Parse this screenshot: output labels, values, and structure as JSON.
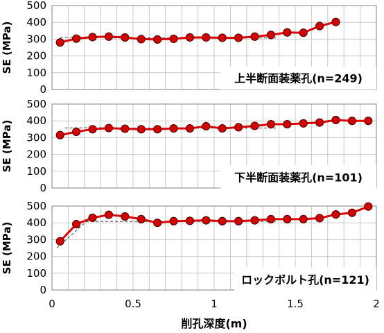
{
  "chart_data": {
    "type": "line",
    "xlabel": "削孔深度(m)",
    "xlim": [
      0,
      2
    ],
    "x_ticks": [
      "0",
      "0.5",
      "1",
      "1.5",
      "2"
    ],
    "grid": true,
    "colors": {
      "line": "#e00000",
      "marker_fill": "#d40000",
      "marker_edge": "#5a0000",
      "trend": "#444444"
    },
    "panels": [
      {
        "title": "上半断面装薬孔(n=249)",
        "ylabel": "SE (MPa)",
        "ylim": [
          0,
          500
        ],
        "y_ticks": [
          "0",
          "100",
          "200",
          "300",
          "400",
          "500"
        ],
        "x": [
          0.05,
          0.15,
          0.25,
          0.35,
          0.45,
          0.55,
          0.65,
          0.75,
          0.85,
          0.95,
          1.05,
          1.15,
          1.25,
          1.35,
          1.45,
          1.55,
          1.65,
          1.75
        ],
        "values": [
          280,
          303,
          312,
          315,
          310,
          300,
          298,
          302,
          310,
          310,
          308,
          308,
          315,
          325,
          340,
          338,
          378,
          402
        ],
        "trend_segments": [
          {
            "x": [
              0.05,
              0.38
            ],
            "y": [
              308,
              318
            ]
          },
          {
            "x": [
              0.38,
              1.38
            ],
            "y": [
              307,
              307
            ]
          }
        ]
      },
      {
        "title": "下半断面装薬孔(n=101)",
        "ylabel": "SE (MPa)",
        "ylim": [
          0,
          500
        ],
        "y_ticks": [
          "0",
          "100",
          "200",
          "300",
          "400",
          "500"
        ],
        "x": [
          0.05,
          0.15,
          0.25,
          0.35,
          0.45,
          0.55,
          0.65,
          0.75,
          0.85,
          0.95,
          1.05,
          1.15,
          1.25,
          1.35,
          1.45,
          1.55,
          1.65,
          1.75,
          1.85,
          1.95
        ],
        "values": [
          315,
          335,
          350,
          357,
          353,
          350,
          350,
          355,
          355,
          368,
          355,
          362,
          370,
          380,
          380,
          385,
          390,
          405,
          400,
          400
        ],
        "trend_segments": [
          {
            "x": [
              0.08,
              0.38
            ],
            "y": [
              358,
              360
            ]
          },
          {
            "x": [
              0.38,
              1.38
            ],
            "y": [
              357,
              357
            ]
          }
        ]
      },
      {
        "title": "ロックボルト孔(n=121)",
        "ylabel": "SE (MPa)",
        "ylim": [
          0,
          500
        ],
        "y_ticks": [
          "0",
          "100",
          "200",
          "300",
          "400",
          "500"
        ],
        "x": [
          0.05,
          0.15,
          0.25,
          0.35,
          0.45,
          0.55,
          0.65,
          0.75,
          0.85,
          0.95,
          1.05,
          1.15,
          1.25,
          1.35,
          1.45,
          1.55,
          1.65,
          1.75,
          1.85,
          1.95
        ],
        "values": [
          290,
          392,
          430,
          448,
          438,
          422,
          400,
          410,
          412,
          415,
          410,
          410,
          415,
          422,
          422,
          422,
          428,
          450,
          460,
          497
        ],
        "trend_segments": [
          {
            "x": [
              0.03,
              0.25
            ],
            "y": [
              250,
              440
            ]
          },
          {
            "x": [
              0.15,
              1.38
            ],
            "y": [
              408,
              408
            ]
          }
        ]
      }
    ]
  }
}
